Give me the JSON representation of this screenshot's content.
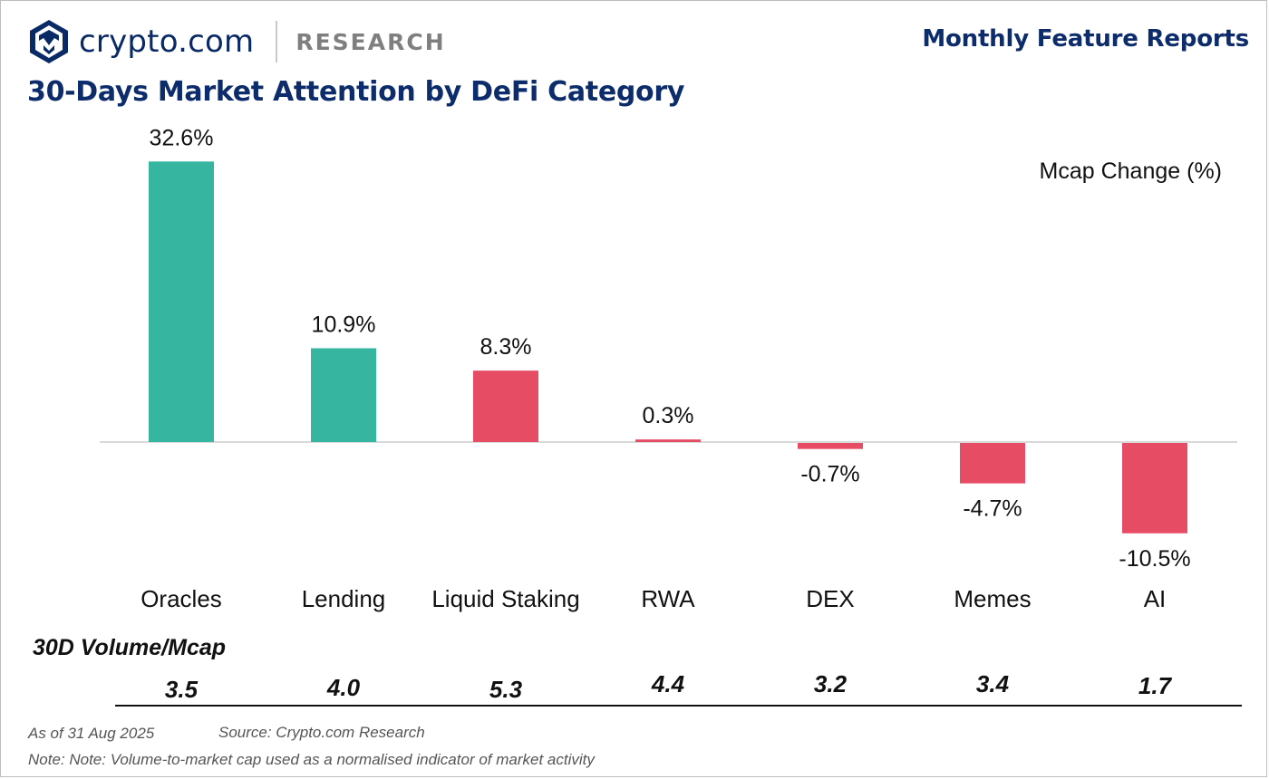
{
  "header": {
    "brand_name": "crypto.com",
    "brand_section": "RESEARCH",
    "report_title": "Monthly Feature Reports",
    "logo_icon": "crypto-com-lion-shield-icon"
  },
  "chart_data": {
    "type": "bar",
    "title": "30-Days Market Attention by DeFi Category",
    "legend_label": "Mcap Change (%)",
    "categories": [
      "Oracles",
      "Lending",
      "Liquid Staking",
      "RWA",
      "DEX",
      "Memes",
      "AI"
    ],
    "values": [
      32.6,
      10.9,
      8.3,
      0.3,
      -0.7,
      -4.7,
      -10.5
    ],
    "value_labels": [
      "32.6%",
      "10.9%",
      "8.3%",
      "0.3%",
      "-0.7%",
      "-4.7%",
      "-10.5%"
    ],
    "bar_colors": [
      "#36b5a0",
      "#36b5a0",
      "#e64c63",
      "#e64c63",
      "#e64c63",
      "#e64c63",
      "#e64c63"
    ],
    "ylim": [
      -12,
      34
    ],
    "secondary_metric": {
      "title": "30D Volume/Mcap",
      "values": [
        "3.5",
        "4.0",
        "5.3",
        "4.4",
        "3.2",
        "3.4",
        "1.7"
      ]
    }
  },
  "footer": {
    "as_of": "As of 31 Aug 2025",
    "source": "Source: Crypto.com Research",
    "note": "Note: Note: Volume-to-market cap used as a normalised indicator of market activity"
  },
  "colors": {
    "navy": "#0d2c6b",
    "teal": "#36b5a0",
    "red": "#e64c63"
  }
}
